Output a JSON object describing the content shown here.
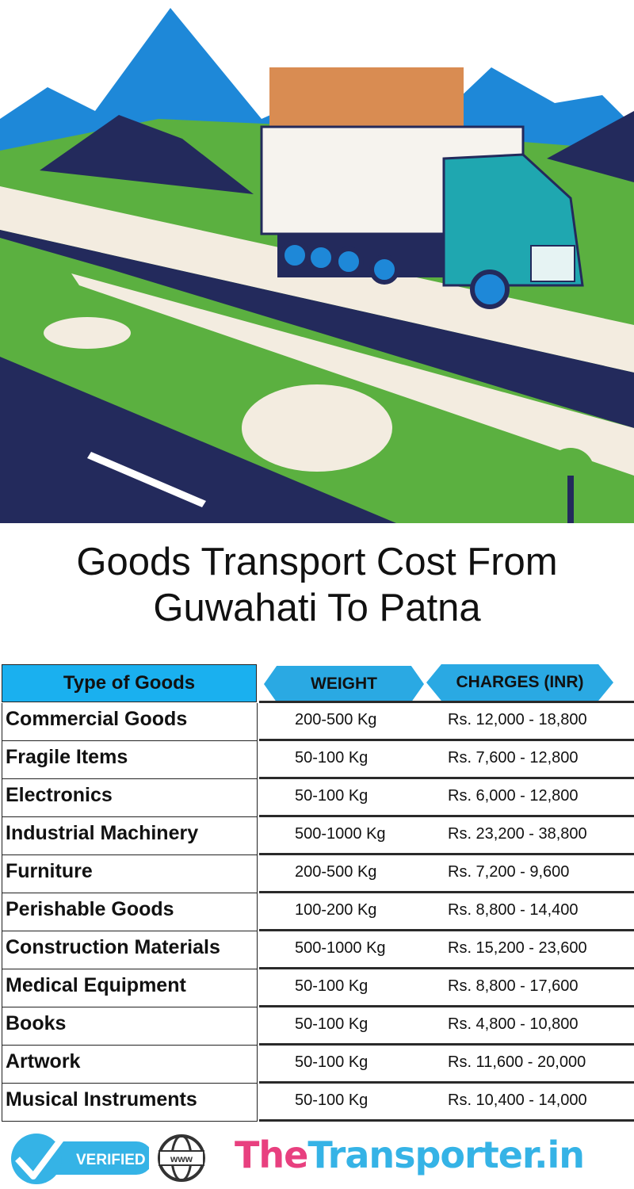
{
  "title": "Goods Transport Cost From Guwahati To Patna",
  "table": {
    "headers": {
      "type": "Type of Goods",
      "weight": "WEIGHT",
      "charges": "CHARGES (INR)"
    },
    "rows": [
      {
        "type": "Commercial Goods",
        "weight": "200-500 Kg",
        "charges": "Rs. 12,000 - 18,800"
      },
      {
        "type": "Fragile Items",
        "weight": "50-100 Kg",
        "charges": "Rs. 7,600 - 12,800"
      },
      {
        "type": "Electronics",
        "weight": "50-100 Kg",
        "charges": "Rs. 6,000 - 12,800"
      },
      {
        "type": "Industrial Machinery",
        "weight": "500-1000 Kg",
        "charges": "Rs. 23,200 - 38,800"
      },
      {
        "type": "Furniture",
        "weight": "200-500 Kg",
        "charges": "Rs. 7,200 - 9,600"
      },
      {
        "type": "Perishable Goods",
        "weight": "100-200 Kg",
        "charges": "Rs. 8,800 - 14,400"
      },
      {
        "type": "Construction Materials",
        "weight": "500-1000 Kg",
        "charges": "Rs. 15,200 - 23,600"
      },
      {
        "type": "Medical Equipment",
        "weight": "50-100 Kg",
        "charges": "Rs. 8,800 - 17,600"
      },
      {
        "type": "Books",
        "weight": "50-100 Kg",
        "charges": "Rs. 4,800 - 10,800"
      },
      {
        "type": "Artwork",
        "weight": "50-100 Kg",
        "charges": "Rs. 11,600 - 20,000"
      },
      {
        "type": "Musical Instruments",
        "weight": "50-100 Kg",
        "charges": "Rs. 10,400 - 14,000"
      }
    ]
  },
  "footer": {
    "verified": "VERIFIED",
    "www": "www",
    "brand_part1": "The",
    "brand_part2": "Transporter.in"
  },
  "colors": {
    "header_blue": "#1ab0ef",
    "brand_pink": "#e8407f",
    "brand_blue": "#35b3e6"
  }
}
